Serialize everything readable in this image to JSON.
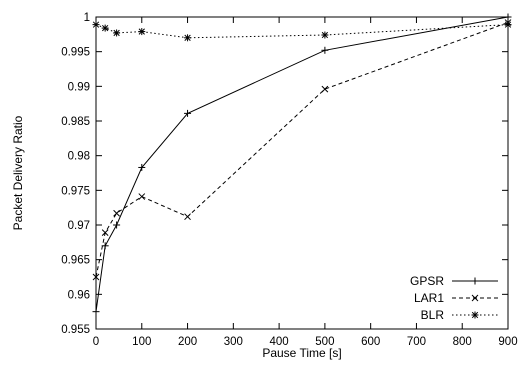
{
  "chart_data": {
    "type": "line",
    "title": "",
    "xlabel": "Pause Time [s]",
    "ylabel": "Packet Delivery Ratio",
    "xlim": [
      0,
      900
    ],
    "ylim": [
      0.955,
      1.0
    ],
    "xticks": [
      0,
      100,
      200,
      300,
      400,
      500,
      600,
      700,
      800,
      900
    ],
    "yticks": [
      0.955,
      0.96,
      0.965,
      0.97,
      0.975,
      0.98,
      0.985,
      0.99,
      0.995,
      1
    ],
    "ytick_labels": [
      "0.955",
      "0.96",
      "0.965",
      "0.97",
      "0.975",
      "0.98",
      "0.985",
      "0.99",
      "0.995",
      "1"
    ],
    "grid": false,
    "legend_position": "bottom-right",
    "x": [
      0,
      20,
      45,
      100,
      200,
      500,
      900
    ],
    "series": [
      {
        "name": "GPSR",
        "marker": "plus",
        "dash": "solid",
        "values": [
          0.9575,
          0.967,
          0.97,
          0.9783,
          0.9861,
          0.9952,
          1.0
        ]
      },
      {
        "name": "LAR1",
        "marker": "cross",
        "dash": "dashed",
        "values": [
          0.9625,
          0.9689,
          0.9717,
          0.9741,
          0.9712,
          0.9896,
          0.9992
        ]
      },
      {
        "name": "BLR",
        "marker": "star",
        "dash": "dotted",
        "values": [
          0.9989,
          0.9984,
          0.9977,
          0.9979,
          0.997,
          0.9974,
          0.9989
        ]
      }
    ]
  }
}
